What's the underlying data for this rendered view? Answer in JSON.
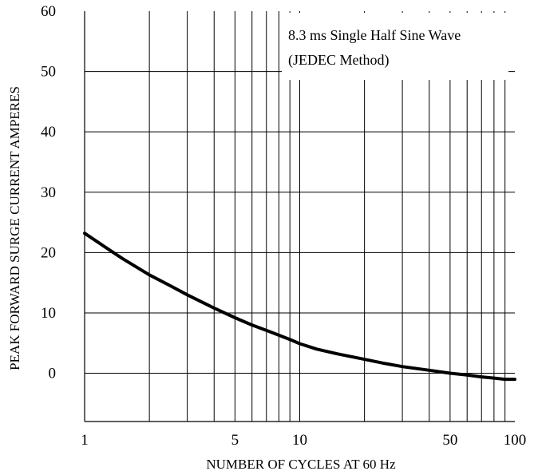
{
  "chart_data": {
    "type": "line",
    "title": "",
    "xlabel": "NUMBER OF CYCLES AT 60 Hz",
    "ylabel": "PEAK FORWARD SURGE CURRENT AMPERES",
    "x_scale": "log",
    "xlim": [
      1,
      100
    ],
    "ylim": [
      -8,
      60
    ],
    "grid": true,
    "x_ticks": [
      {
        "value": 1,
        "label": "1"
      },
      {
        "value": 5,
        "label": "5"
      },
      {
        "value": 10,
        "label": "10"
      },
      {
        "value": 50,
        "label": "50"
      },
      {
        "value": 100,
        "label": "100"
      }
    ],
    "y_ticks": [
      {
        "value": 60,
        "label": "60"
      },
      {
        "value": 50,
        "label": "50"
      },
      {
        "value": 40,
        "label": "40"
      },
      {
        "value": 30,
        "label": "30"
      },
      {
        "value": 20,
        "label": "20"
      },
      {
        "value": 10,
        "label": "10"
      },
      {
        "value": 0,
        "label": "0"
      }
    ],
    "annotation": [
      "8.3 ms Single Half Sine Wave",
      "(JEDEC Method)"
    ],
    "series": [
      {
        "x": [
          1,
          1.2,
          1.5,
          2,
          2.5,
          3,
          4,
          5,
          6,
          7,
          8,
          9,
          10,
          12,
          15,
          20,
          25,
          30,
          40,
          50,
          60,
          70,
          80,
          90,
          100
        ],
        "y": [
          23.2,
          21.3,
          19.0,
          16.3,
          14.5,
          13.0,
          10.8,
          9.2,
          8.0,
          7.1,
          6.3,
          5.6,
          4.9,
          4.0,
          3.2,
          2.3,
          1.6,
          1.1,
          0.5,
          0.0,
          -0.3,
          -0.6,
          -0.8,
          -1.0,
          -1.0
        ],
        "color": "#000000"
      }
    ]
  }
}
